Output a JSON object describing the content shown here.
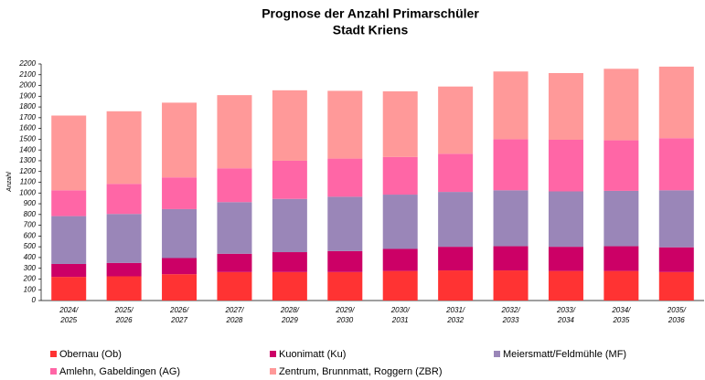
{
  "chart_data": {
    "type": "stacked_bar",
    "title": "Prognose der Anzahl Primarschüler",
    "subtitle": "Stadt Kriens",
    "y_label": "Anzahl",
    "categories": [
      "2024/\n2025",
      "2025/\n2026",
      "2026/\n2027",
      "2027/\n2028",
      "2028/\n2029",
      "2029/\n2030",
      "2030/\n2031",
      "2031/\n2032",
      "2032/\n2033",
      "2033/\n2034",
      "2034/\n2035",
      "2035/\n2036"
    ],
    "series": [
      {
        "name": "Obernau (Ob)",
        "color": "#ff3333",
        "values": [
          220,
          225,
          245,
          265,
          265,
          265,
          275,
          280,
          280,
          275,
          275,
          265
        ]
      },
      {
        "name": "Kuonimatt (Ku)",
        "color": "#cc0066",
        "values": [
          120,
          125,
          150,
          170,
          185,
          195,
          205,
          220,
          225,
          225,
          230,
          230
        ]
      },
      {
        "name": "Meiersmatt/Feldmühle (MF)",
        "color": "#9a86b8",
        "values": [
          445,
          455,
          455,
          480,
          495,
          505,
          505,
          510,
          520,
          515,
          515,
          530
        ]
      },
      {
        "name": "Amlehn, Gabeldingen (AG)",
        "color": "#ff66a6",
        "values": [
          240,
          280,
          295,
          315,
          355,
          355,
          350,
          355,
          475,
          480,
          470,
          485
        ]
      },
      {
        "name": "Zentrum, Brunnmatt, Roggern (ZBR)",
        "color": "#ff9999",
        "values": [
          695,
          675,
          695,
          680,
          655,
          630,
          610,
          625,
          630,
          620,
          665,
          665
        ]
      }
    ],
    "ylim": [
      0,
      2200
    ],
    "yticks": [
      0,
      100,
      200,
      300,
      400,
      500,
      600,
      700,
      800,
      900,
      1000,
      1100,
      1200,
      1300,
      1400,
      1500,
      1600,
      1700,
      1800,
      1900,
      2000,
      2100,
      2200
    ],
    "grid": false
  }
}
